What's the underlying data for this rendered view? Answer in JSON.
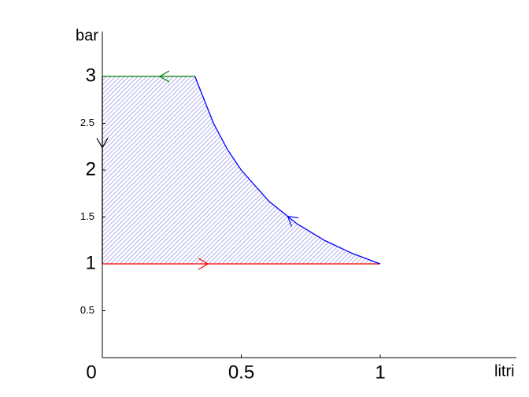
{
  "chart_data": {
    "type": "line",
    "xlabel": "litri",
    "ylabel": "bar",
    "xlim": [
      0,
      1.5
    ],
    "ylim": [
      0,
      3.5
    ],
    "xticks": [
      0,
      0.5,
      1
    ],
    "yticks": [
      0.5,
      1,
      1.5,
      2,
      2.5,
      3
    ],
    "fill_color": "#9a9ae8",
    "series": [
      {
        "color": "#ff0000",
        "x": [
          0,
          1
        ],
        "values": [
          1,
          1
        ]
      },
      {
        "color": "#0000ff",
        "x": [
          1,
          0.9,
          0.8,
          0.7,
          0.6,
          0.5,
          0.45,
          0.4,
          0.3333
        ],
        "values": [
          1,
          1.111,
          1.25,
          1.429,
          1.667,
          2,
          2.222,
          2.5,
          3
        ]
      },
      {
        "color": "#008000",
        "x": [
          0.3333,
          0
        ],
        "values": [
          3,
          3
        ]
      },
      {
        "color": "#000000",
        "x": [
          0,
          0
        ],
        "values": [
          3,
          1
        ]
      }
    ]
  }
}
